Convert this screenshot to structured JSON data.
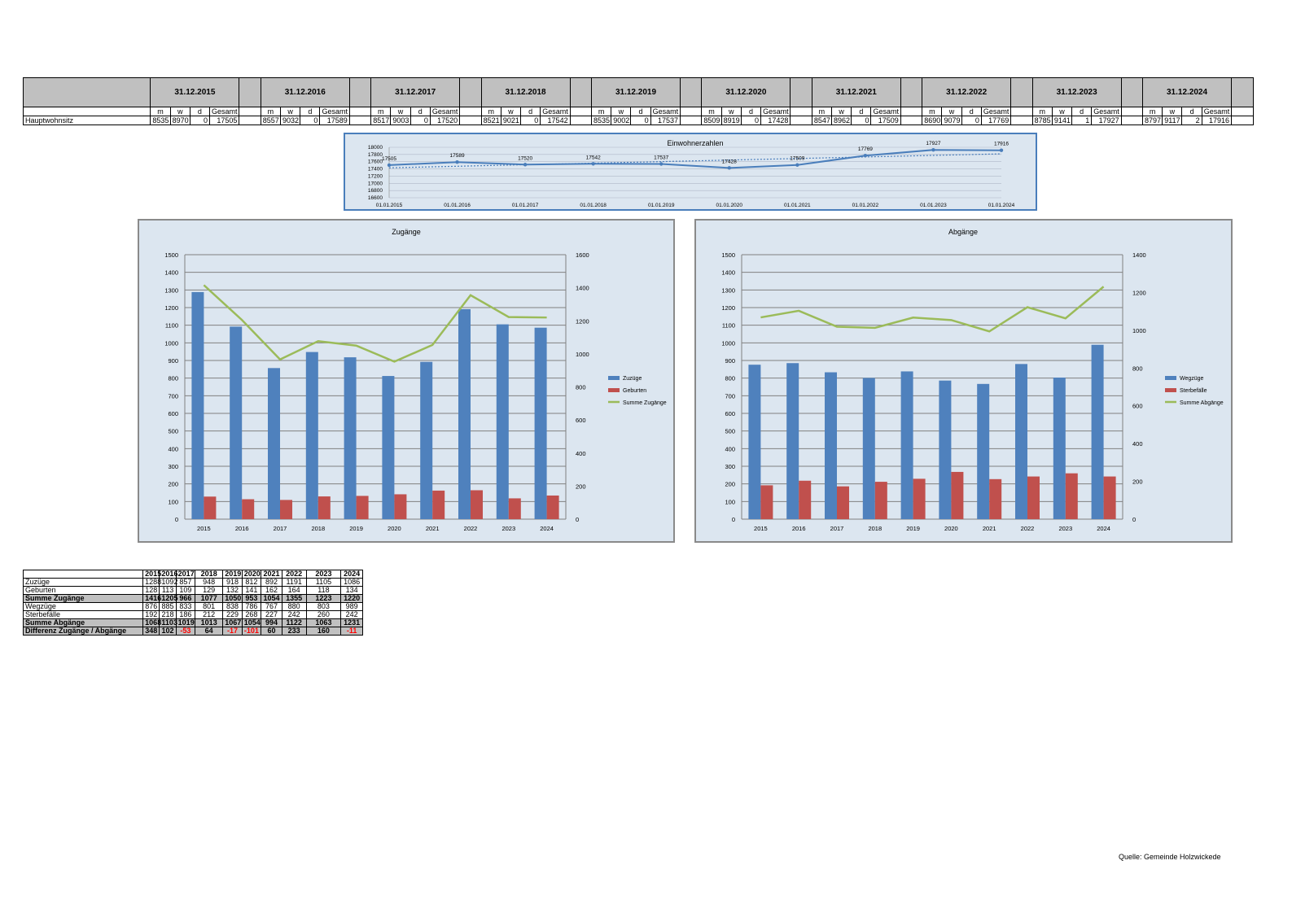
{
  "top_table": {
    "col_labels": [
      "m",
      "w",
      "d",
      "Gesamt"
    ],
    "row_label": "Hauptwohnsitz",
    "periods": [
      {
        "date": "31.12.2015",
        "values": [
          8535,
          8970,
          0,
          17505
        ]
      },
      {
        "date": "31.12.2016",
        "values": [
          8557,
          9032,
          0,
          17589
        ]
      },
      {
        "date": "31.12.2017",
        "values": [
          8517,
          9003,
          0,
          17520
        ]
      },
      {
        "date": "31.12.2018",
        "values": [
          8521,
          9021,
          0,
          17542
        ]
      },
      {
        "date": "31.12.2019",
        "values": [
          8535,
          9002,
          0,
          17537
        ]
      },
      {
        "date": "31.12.2020",
        "values": [
          8509,
          8919,
          0,
          17428
        ]
      },
      {
        "date": "31.12.2021",
        "values": [
          8547,
          8962,
          0,
          17509
        ]
      },
      {
        "date": "31.12.2022",
        "values": [
          8690,
          9079,
          0,
          17769
        ]
      },
      {
        "date": "31.12.2023",
        "values": [
          8785,
          9141,
          1,
          17927
        ]
      },
      {
        "date": "31.12.2024",
        "values": [
          8797,
          9117,
          2,
          17916
        ]
      }
    ]
  },
  "chart_data": [
    {
      "type": "line",
      "title": "Einwohnerzahlen",
      "x": [
        "01.01.2015",
        "01.01.2016",
        "01.01.2017",
        "01.01.2018",
        "01.01.2019",
        "01.01.2020",
        "01.01.2021",
        "01.01.2022",
        "01.01.2023",
        "01.01.2024"
      ],
      "series": [
        {
          "values": [
            17505,
            17589,
            17520,
            17542,
            17537,
            17428,
            17509,
            17769,
            17927,
            17916
          ]
        }
      ],
      "trendline": true,
      "ylim": [
        16600,
        18000
      ],
      "yticks": [
        16600,
        16800,
        17000,
        17200,
        17400,
        17600,
        17800,
        18000
      ],
      "grid": true,
      "colors": {
        "line": "#4a7ebb"
      }
    },
    {
      "type": "bar",
      "title": "Zugänge",
      "categories": [
        "2015",
        "2016",
        "2017",
        "2018",
        "2019",
        "2020",
        "2021",
        "2022",
        "2023",
        "2024"
      ],
      "series": [
        {
          "name": "Zuzüge",
          "values": [
            1288,
            1092,
            857,
            948,
            918,
            812,
            892,
            1191,
            1105,
            1086
          ],
          "color": "#4f81bd",
          "axis": "left",
          "kind": "bar"
        },
        {
          "name": "Geburten",
          "values": [
            128,
            113,
            109,
            129,
            132,
            141,
            162,
            164,
            118,
            134
          ],
          "color": "#c0504d",
          "axis": "left",
          "kind": "bar"
        },
        {
          "name": "Summe Zugänge",
          "values": [
            1416,
            1205,
            966,
            1077,
            1050,
            953,
            1054,
            1355,
            1223,
            1220
          ],
          "color": "#9bbb59",
          "axis": "right",
          "kind": "line"
        }
      ],
      "ylim": [
        0,
        1500
      ],
      "yticks": [
        0,
        100,
        200,
        300,
        400,
        500,
        600,
        700,
        800,
        900,
        1000,
        1100,
        1200,
        1300,
        1400,
        1500
      ],
      "y2lim": [
        0,
        1600
      ],
      "y2ticks": [
        0,
        200,
        400,
        600,
        800,
        1000,
        1200,
        1400,
        1600
      ],
      "grid": true,
      "legend": "right"
    },
    {
      "type": "bar",
      "title": "Abgänge",
      "categories": [
        "2015",
        "2016",
        "2017",
        "2018",
        "2019",
        "2020",
        "2021",
        "2022",
        "2023",
        "2024"
      ],
      "series": [
        {
          "name": "Wegzüge",
          "values": [
            876,
            885,
            833,
            801,
            838,
            786,
            767,
            880,
            803,
            989
          ],
          "color": "#4f81bd",
          "axis": "left",
          "kind": "bar"
        },
        {
          "name": "Sterbefälle",
          "values": [
            192,
            218,
            186,
            212,
            229,
            268,
            227,
            242,
            260,
            242
          ],
          "color": "#c0504d",
          "axis": "left",
          "kind": "bar"
        },
        {
          "name": "Summe Abgänge",
          "values": [
            1068,
            1103,
            1019,
            1013,
            1067,
            1054,
            994,
            1122,
            1063,
            1231
          ],
          "color": "#9bbb59",
          "axis": "right",
          "kind": "line"
        }
      ],
      "ylim": [
        0,
        1500
      ],
      "yticks": [
        0,
        100,
        200,
        300,
        400,
        500,
        600,
        700,
        800,
        900,
        1000,
        1100,
        1200,
        1300,
        1400,
        1500
      ],
      "y2lim": [
        0,
        1400
      ],
      "y2ticks": [
        0,
        200,
        400,
        600,
        800,
        1000,
        1200,
        1400
      ],
      "grid": true,
      "legend": "right"
    }
  ],
  "bottom_table": {
    "years": [
      "2015",
      "2016",
      "2017",
      "2018",
      "2019",
      "2020",
      "2021",
      "2022",
      "2023",
      "2024"
    ],
    "rows": [
      {
        "label": "Zuzüge",
        "values": [
          1288,
          1092,
          857,
          948,
          918,
          812,
          892,
          1191,
          1105,
          1086
        ],
        "bold": false
      },
      {
        "label": "Geburten",
        "values": [
          128,
          113,
          109,
          129,
          132,
          141,
          162,
          164,
          118,
          134
        ],
        "bold": false
      },
      {
        "label": "Summe Zugänge",
        "values": [
          1416,
          1205,
          966,
          1077,
          1050,
          953,
          1054,
          1355,
          1223,
          1220
        ],
        "bold": true
      },
      {
        "label": "Wegzüge",
        "values": [
          876,
          885,
          833,
          801,
          838,
          786,
          767,
          880,
          803,
          989
        ],
        "bold": false
      },
      {
        "label": "Sterbefälle",
        "values": [
          192,
          218,
          186,
          212,
          229,
          268,
          227,
          242,
          260,
          242
        ],
        "bold": false
      },
      {
        "label": "Summe Abgänge",
        "values": [
          1068,
          1103,
          1019,
          1013,
          1067,
          1054,
          994,
          1122,
          1063,
          1231
        ],
        "bold": true
      },
      {
        "label": "Differenz Zugänge / Abgänge",
        "values": [
          348,
          102,
          -53,
          64,
          -17,
          -101,
          60,
          233,
          160,
          -11
        ],
        "bold": true
      }
    ],
    "negative_color": "#ff0000"
  },
  "source": "Quelle: Gemeinde Holzwickede"
}
